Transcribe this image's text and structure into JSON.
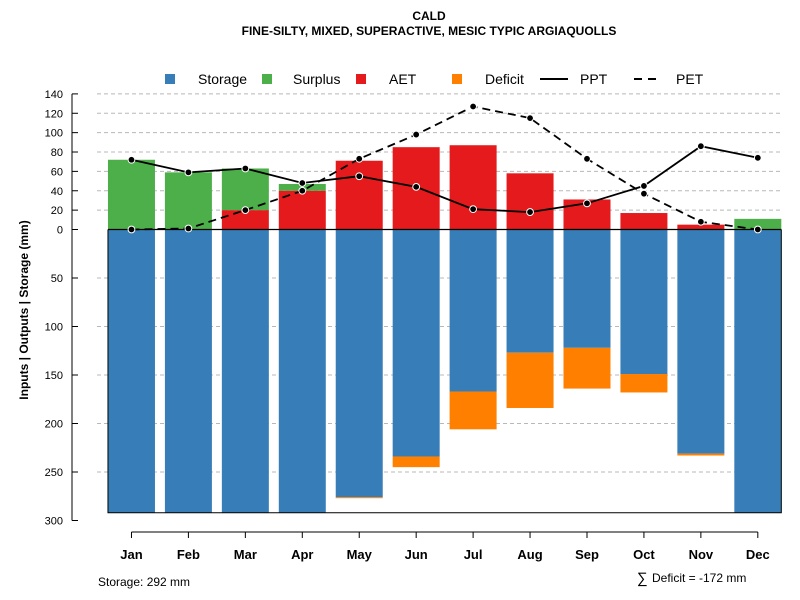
{
  "chart_data": {
    "type": "bar",
    "title": "CALD",
    "subtitle": "FINE-SILTY, MIXED, SUPERACTIVE, MESIC TYPIC ARGIAQUOLLS",
    "ylabel": "Inputs | Outputs | Storage     (mm)",
    "categories": [
      "Jan",
      "Feb",
      "Mar",
      "Apr",
      "May",
      "Jun",
      "Jul",
      "Aug",
      "Sep",
      "Oct",
      "Nov",
      "Dec"
    ],
    "upper_axis": {
      "ylim": [
        0,
        140
      ],
      "ticks": [
        "0",
        "20",
        "40",
        "60",
        "80",
        "100",
        "120",
        "140"
      ]
    },
    "lower_axis": {
      "ylim": [
        0,
        300
      ],
      "ticks": [
        "0",
        "50",
        "100",
        "150",
        "200",
        "250",
        "300"
      ]
    },
    "legend": {
      "position": "top",
      "entries": [
        {
          "key": "storage",
          "label": "Storage",
          "kind": "box",
          "color": "#377eb8"
        },
        {
          "key": "surplus",
          "label": "Surplus",
          "kind": "box",
          "color": "#4daf4a"
        },
        {
          "key": "aet",
          "label": "AET",
          "kind": "box",
          "color": "#e41a1c"
        },
        {
          "key": "deficit",
          "label": "Deficit",
          "kind": "box",
          "color": "#ff7f00"
        },
        {
          "key": "ppt",
          "label": "PPT",
          "kind": "solid",
          "color": "#000000"
        },
        {
          "key": "pet",
          "label": "PET",
          "kind": "dashed",
          "color": "#000000"
        }
      ]
    },
    "series": [
      {
        "name": "AET",
        "color": "#e41a1c",
        "values": [
          0,
          0,
          20,
          40,
          71,
          85,
          87,
          58,
          31,
          17,
          5,
          0
        ]
      },
      {
        "name": "Surplus",
        "color": "#4daf4a",
        "values": [
          72,
          59,
          43,
          7,
          0,
          0,
          0,
          0,
          0,
          0,
          0,
          11
        ]
      },
      {
        "name": "Storage",
        "color": "#377eb8",
        "values": [
          292,
          292,
          292,
          292,
          276,
          234,
          167,
          127,
          122,
          149,
          231,
          292
        ]
      },
      {
        "name": "Deficit",
        "color": "#ff7f00",
        "values": [
          0,
          0,
          0,
          0,
          1,
          11,
          39,
          57,
          42,
          19,
          2,
          0
        ]
      },
      {
        "name": "PPT",
        "color": "#000000",
        "values": [
          72,
          59,
          63,
          48,
          55,
          44,
          21,
          18,
          27,
          45,
          86,
          74
        ]
      },
      {
        "name": "PET",
        "color": "#000000",
        "values": [
          0,
          1,
          20,
          40,
          73,
          98,
          127,
          115,
          73,
          37,
          8,
          0
        ]
      }
    ],
    "storage_total": 292,
    "annotations": {
      "storage": "Storage: 292 mm",
      "deficit_symbol": "∑",
      "deficit": "Deficit = -172 mm"
    }
  }
}
